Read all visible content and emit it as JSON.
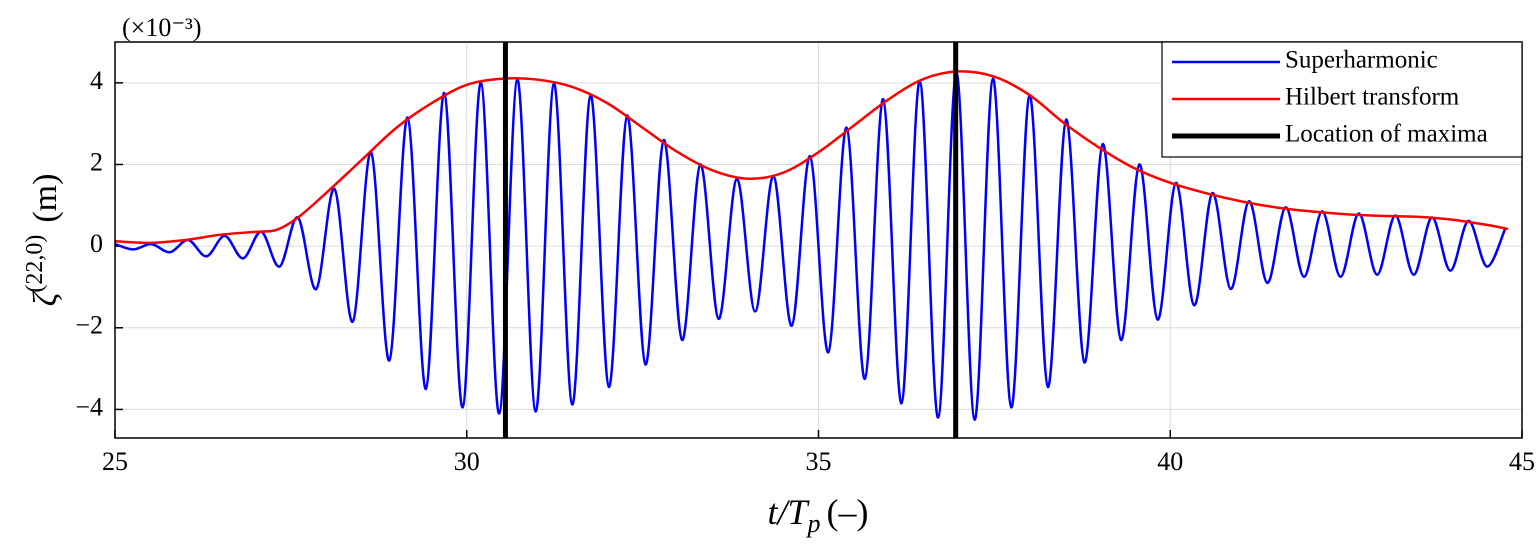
{
  "chart_data": {
    "type": "line",
    "scale_label": "(×10⁻³)",
    "xlabel": {
      "main": "t/T",
      "subscript": "p",
      "unit": "(–)"
    },
    "ylabel": {
      "symbol": "ζ",
      "superscript": "(22,0)",
      "unit": "(m)"
    },
    "xlim": [
      25,
      45
    ],
    "xticks": [
      25,
      30,
      35,
      40,
      45
    ],
    "ylim": [
      -4.7,
      5.0
    ],
    "yticks": [
      -4,
      -2,
      0,
      2,
      4
    ],
    "grid": true,
    "legend": "upper right",
    "series": [
      {
        "name": "Superharmonic",
        "color": "#0000ff",
        "x": [
          25.0,
          25.26,
          25.52,
          25.78,
          26.04,
          26.3,
          26.56,
          26.82,
          27.08,
          27.34,
          27.6,
          27.86,
          28.12,
          28.38,
          28.64,
          28.9,
          29.16,
          29.42,
          29.68,
          29.94,
          30.2,
          30.46,
          30.72,
          30.98,
          31.24,
          31.5,
          31.76,
          32.02,
          32.28,
          32.54,
          32.8,
          33.06,
          33.32,
          33.58,
          33.84,
          34.1,
          34.36,
          34.62,
          34.88,
          35.14,
          35.4,
          35.66,
          35.92,
          36.18,
          36.44,
          36.7,
          36.96,
          37.22,
          37.48,
          37.74,
          38.0,
          38.26,
          38.52,
          38.78,
          39.04,
          39.3,
          39.56,
          39.82,
          40.08,
          40.34,
          40.6,
          40.86,
          41.12,
          41.38,
          41.64,
          41.9,
          42.16,
          42.42,
          42.68,
          42.94,
          43.2,
          43.46,
          43.72,
          43.98,
          44.24,
          44.5,
          44.76
        ],
        "values": [
          0.05,
          -0.08,
          0.05,
          -0.15,
          0.15,
          -0.25,
          0.25,
          -0.3,
          0.35,
          -0.5,
          0.7,
          -1.05,
          1.4,
          -1.85,
          2.3,
          -2.8,
          3.15,
          -3.5,
          3.75,
          -3.95,
          4.0,
          -4.1,
          4.08,
          -4.05,
          3.98,
          -3.88,
          3.7,
          -3.45,
          3.2,
          -2.9,
          2.6,
          -2.3,
          2.0,
          -1.78,
          1.65,
          -1.6,
          1.72,
          -1.95,
          2.2,
          -2.6,
          2.9,
          -3.25,
          3.6,
          -3.85,
          4.05,
          -4.2,
          4.25,
          -4.25,
          4.1,
          -3.95,
          3.7,
          -3.45,
          3.1,
          -2.85,
          2.5,
          -2.3,
          2.0,
          -1.8,
          1.55,
          -1.45,
          1.3,
          -1.05,
          1.1,
          -0.9,
          0.95,
          -0.75,
          0.85,
          -0.75,
          0.8,
          -0.7,
          0.75,
          -0.7,
          0.7,
          -0.6,
          0.62,
          -0.5,
          0.42
        ]
      },
      {
        "name": "Hilbert transform",
        "color": "#ff0000",
        "x": [
          25,
          25.5,
          26,
          26.5,
          27,
          27.3,
          27.6,
          28,
          28.5,
          29,
          29.5,
          30,
          30.5,
          31,
          31.5,
          32,
          32.5,
          33,
          33.5,
          34,
          34.5,
          35,
          35.5,
          36,
          36.5,
          37,
          37.5,
          38,
          38.5,
          39,
          39.5,
          40,
          40.5,
          41,
          41.5,
          42,
          42.5,
          43,
          43.5,
          44,
          44.5,
          44.8
        ],
        "values": [
          0.12,
          0.08,
          0.15,
          0.28,
          0.35,
          0.4,
          0.7,
          1.3,
          2.1,
          2.9,
          3.5,
          3.95,
          4.1,
          4.08,
          3.9,
          3.5,
          2.9,
          2.3,
          1.85,
          1.65,
          1.8,
          2.3,
          2.95,
          3.6,
          4.1,
          4.28,
          4.15,
          3.7,
          3.0,
          2.4,
          1.9,
          1.55,
          1.3,
          1.1,
          0.95,
          0.85,
          0.78,
          0.74,
          0.72,
          0.65,
          0.52,
          0.42
        ]
      },
      {
        "name": "Location of maxima",
        "color": "#000000",
        "vertical": true,
        "x": [
          30.55,
          36.95
        ]
      }
    ]
  }
}
